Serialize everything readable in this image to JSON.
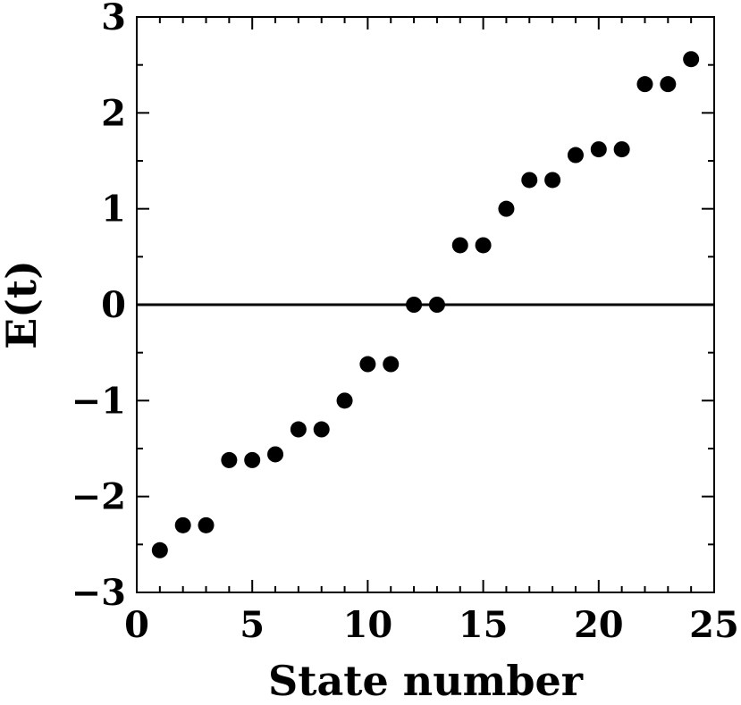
{
  "chart_data": {
    "type": "scatter",
    "title": "",
    "xlabel": "State number",
    "ylabel": "E(t)",
    "xlim": [
      0,
      25
    ],
    "ylim": [
      -3,
      3
    ],
    "xticks": [
      0,
      5,
      10,
      15,
      20,
      25
    ],
    "yticks": [
      -3,
      -2,
      -1,
      0,
      1,
      2,
      3
    ],
    "xtick_labels": [
      "0",
      "5",
      "10",
      "15",
      "20",
      "25"
    ],
    "ytick_labels": [
      "−3",
      "−2",
      "−1",
      "0",
      "1",
      "2",
      "3"
    ],
    "grid": false,
    "reference_line_y": 0,
    "marker_color": "#000000",
    "series": [
      {
        "x": [
          1,
          2,
          3,
          4,
          5,
          6,
          7,
          8,
          9,
          10,
          11,
          12,
          13,
          14,
          15,
          16,
          17,
          18,
          19,
          20,
          21,
          22,
          23,
          24
        ],
        "y": [
          -2.56,
          -2.3,
          -2.3,
          -1.62,
          -1.62,
          -1.56,
          -1.3,
          -1.3,
          -1.0,
          -0.62,
          -0.62,
          0.0,
          0.0,
          0.62,
          0.62,
          1.0,
          1.3,
          1.3,
          1.56,
          1.62,
          1.62,
          2.3,
          2.3,
          2.56
        ]
      }
    ]
  }
}
